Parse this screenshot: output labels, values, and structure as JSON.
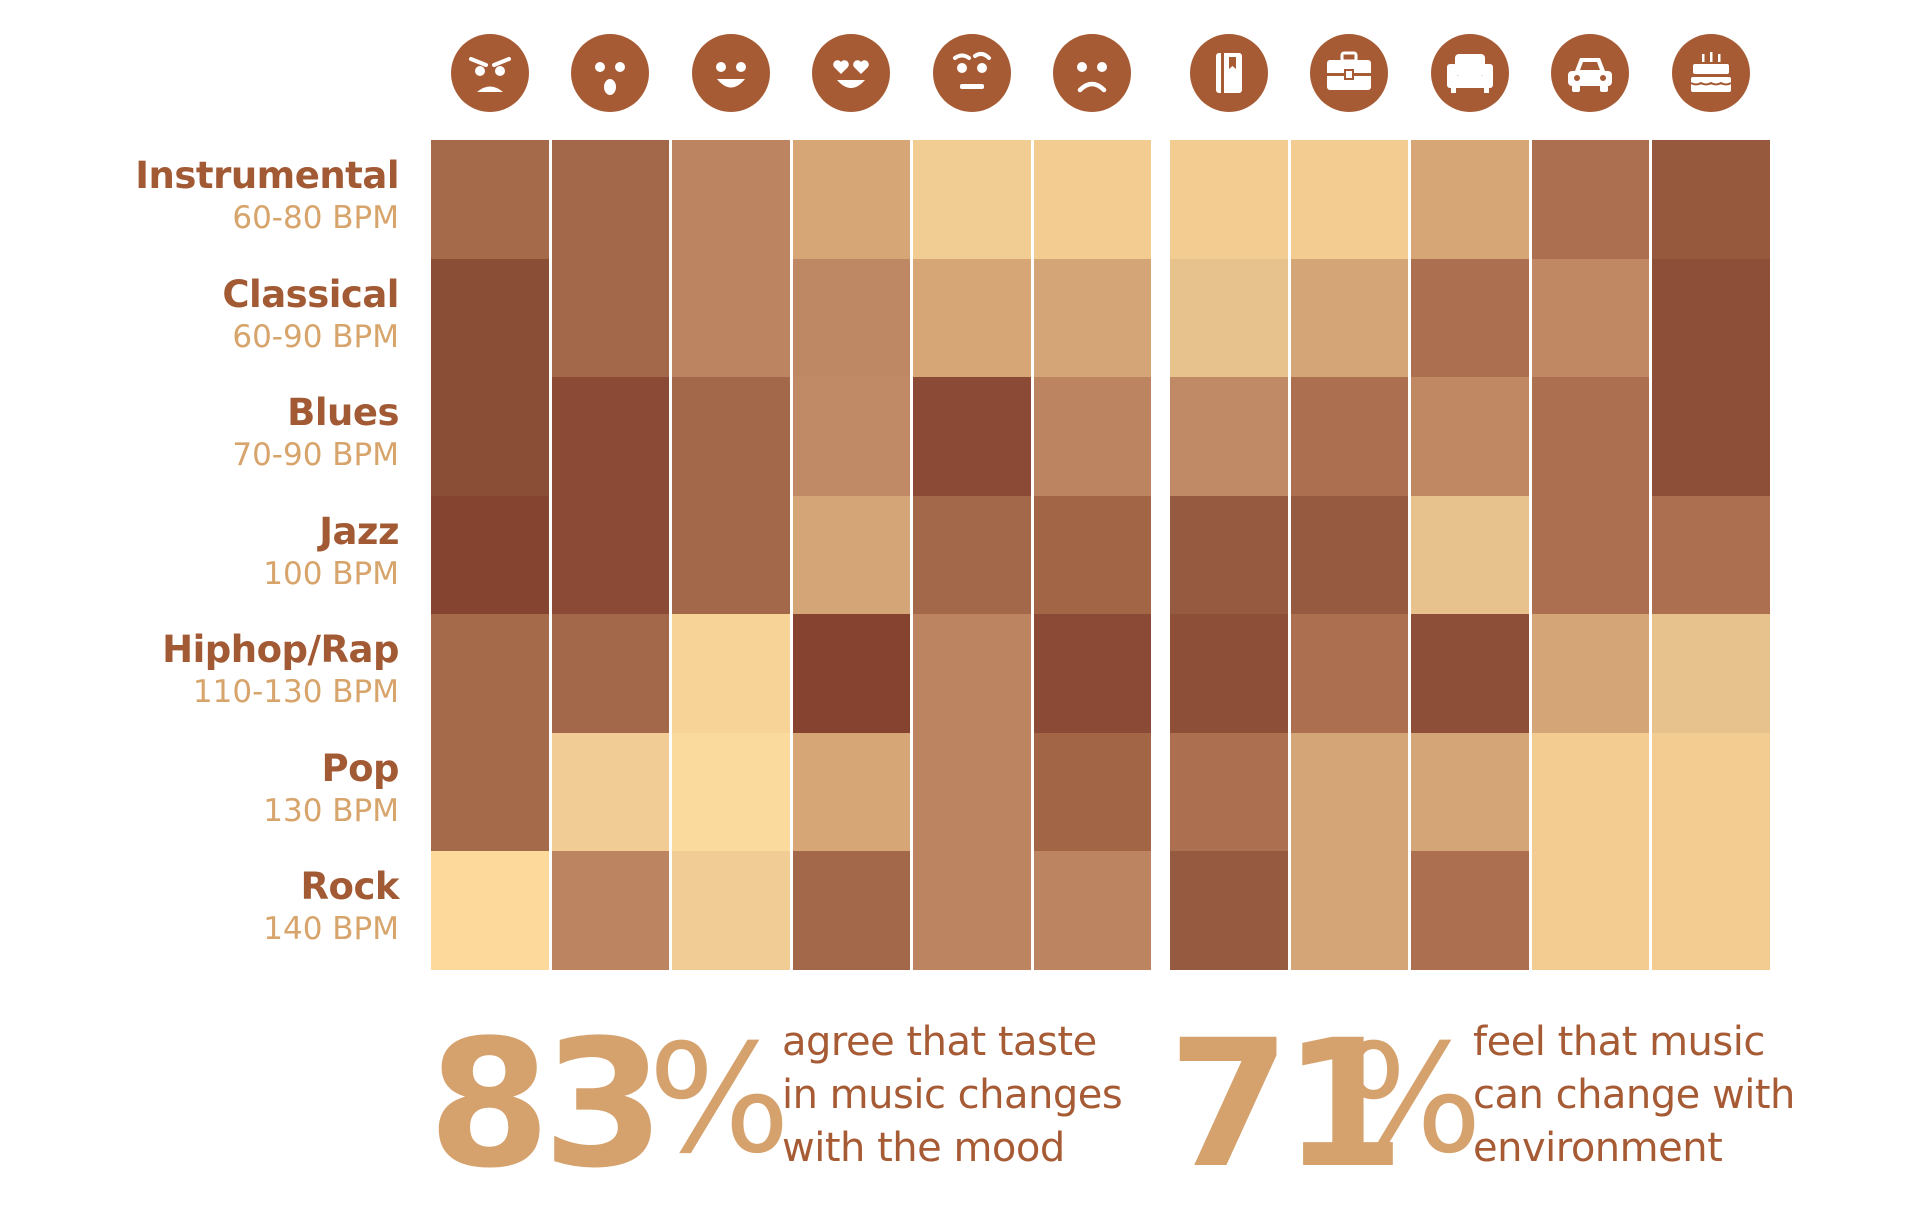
{
  "chart_data": {
    "type": "heatmap",
    "rows": [
      {
        "name": "Instrumental",
        "bpm": "60-80 BPM"
      },
      {
        "name": "Classical",
        "bpm": "60-90 BPM"
      },
      {
        "name": "Blues",
        "bpm": "70-90 BPM"
      },
      {
        "name": "Jazz",
        "bpm": "100 BPM"
      },
      {
        "name": "Hiphop/Rap",
        "bpm": "110-130 BPM"
      },
      {
        "name": "Pop",
        "bpm": "130 BPM"
      },
      {
        "name": "Rock",
        "bpm": "140 BPM"
      }
    ],
    "mood_columns": [
      "angry-face-icon",
      "surprised-face-icon",
      "smiling-face-icon",
      "heart-eyes-face-icon",
      "skeptical-face-icon",
      "sad-face-icon"
    ],
    "environment_columns": [
      "book-icon",
      "briefcase-icon",
      "armchair-icon",
      "car-icon",
      "birthday-cake-icon"
    ],
    "mood_colors": [
      [
        "#a56a4a",
        "#a36849",
        "#bc8460",
        "#d6a677",
        "#f2cd93",
        "#f2cc91"
      ],
      [
        "#8a4e37",
        "#a36849",
        "#bc8460",
        "#be8864",
        "#d6a677",
        "#d4a576"
      ],
      [
        "#8a4e37",
        "#8a4a35",
        "#a36849",
        "#bf8a65",
        "#8a4a35",
        "#bc8460"
      ],
      [
        "#844430",
        "#8a4a35",
        "#a36849",
        "#d4a576",
        "#a36849",
        "#a26647"
      ],
      [
        "#a56a4a",
        "#a36849",
        "#f7d398",
        "#86432f",
        "#bc8460",
        "#8a4a35"
      ],
      [
        "#a56a4a",
        "#f1cd95",
        "#fbda9e",
        "#d6a677",
        "#bc8460",
        "#a26647"
      ],
      [
        "#fdd99b",
        "#bc8460",
        "#f1cd95",
        "#a36849",
        "#bc8460",
        "#bc8460"
      ]
    ],
    "environment_colors": [
      [
        "#f2cc91",
        "#f2cc91",
        "#d6a677",
        "#ac7050",
        "#96593e"
      ],
      [
        "#e8c28d",
        "#d4a576",
        "#ac7050",
        "#c08964",
        "#8e4f38"
      ],
      [
        "#bf8a65",
        "#ac7050",
        "#c08964",
        "#ac7050",
        "#8e4f38"
      ],
      [
        "#955a3f",
        "#955a3f",
        "#e8c28d",
        "#ac7050",
        "#ac7050"
      ],
      [
        "#8e4f38",
        "#ac7050",
        "#8e4f38",
        "#d4a576",
        "#e8c28d"
      ],
      [
        "#ac7050",
        "#d4a576",
        "#d4a576",
        "#f2cc91",
        "#f2cc91"
      ],
      [
        "#955a3f",
        "#d4a576",
        "#ac7050",
        "#f2cc91",
        "#f2cc91"
      ]
    ]
  },
  "stats": [
    {
      "number": "83",
      "percent": "%",
      "lines": [
        "agree that taste",
        "in music changes",
        "with the mood"
      ]
    },
    {
      "number": "71",
      "percent": "%",
      "lines": [
        "feel that music",
        "can change with",
        "environment"
      ]
    }
  ]
}
